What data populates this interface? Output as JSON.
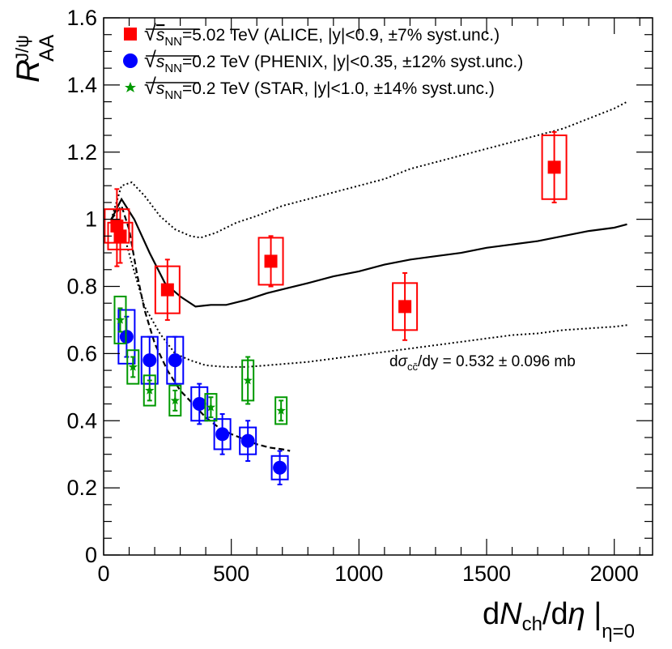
{
  "chart_data": {
    "type": "scatter",
    "title": "",
    "xlabel": "dNch/dη |η=0",
    "xlabel_parts": {
      "d1": "d",
      "N": "N",
      "ch": "ch",
      "slash": "/d",
      "eta": "η",
      "bar": " |",
      "sub": "η=0"
    },
    "ylabel": "R_AA^J/ψ",
    "ylabel_parts": {
      "R": "R",
      "AA": "AA",
      "sup": "J/ψ"
    },
    "xlim": [
      0,
      2150
    ],
    "ylim": [
      0,
      1.6
    ],
    "x_ticks": [
      0,
      500,
      1000,
      1500,
      2000
    ],
    "x_tick_labels": [
      "0",
      "500",
      "1000",
      "1500",
      "2000"
    ],
    "y_ticks": [
      0,
      0.2,
      0.4,
      0.6,
      0.8,
      1.0,
      1.2,
      1.4,
      1.6
    ],
    "y_tick_labels": [
      "0",
      "0.2",
      "0.4",
      "0.6",
      "0.8",
      "1",
      "1.2",
      "1.4",
      "1.6"
    ],
    "grid": false,
    "legend_position": "top",
    "series": [
      {
        "name": "ALICE",
        "marker": "square",
        "color": "#ff0000",
        "legend": {
          "sqrt": "√",
          "s": "s",
          "nn": "NN",
          "text": "=5.02 TeV (ALICE, |y|<0.9, ±7% syst.unc.)"
        },
        "points": [
          {
            "x": 52,
            "y": 0.98,
            "err_low": 0.12,
            "err_high": 0.11,
            "sys_low": 0.05,
            "sys_high": 0.05
          },
          {
            "x": 65,
            "y": 0.95,
            "err_low": 0.08,
            "err_high": 0.08,
            "sys_low": 0.04,
            "sys_high": 0.04
          },
          {
            "x": 250,
            "y": 0.79,
            "err_low": 0.09,
            "err_high": 0.09,
            "sys_low": 0.07,
            "sys_high": 0.07
          },
          {
            "x": 655,
            "y": 0.875,
            "err_low": 0.075,
            "err_high": 0.075,
            "sys_low": 0.07,
            "sys_high": 0.07
          },
          {
            "x": 1180,
            "y": 0.74,
            "err_low": 0.1,
            "err_high": 0.1,
            "sys_low": 0.07,
            "sys_high": 0.07
          },
          {
            "x": 1765,
            "y": 1.155,
            "err_low": 0.105,
            "err_high": 0.105,
            "sys_low": 0.095,
            "sys_high": 0.095
          }
        ]
      },
      {
        "name": "PHENIX",
        "marker": "circle",
        "color": "#0000ff",
        "legend": {
          "sqrt": "√",
          "s": "s",
          "nn": "NN",
          "text": "=0.2 TeV (PHENIX, |y|<0.35, ±12% syst.unc.)"
        },
        "points": [
          {
            "x": 90,
            "y": 0.65,
            "err_low": 0.06,
            "err_high": 0.06,
            "sys_low": 0.08,
            "sys_high": 0.08
          },
          {
            "x": 180,
            "y": 0.58,
            "err_low": 0.07,
            "err_high": 0.07,
            "sys_low": 0.07,
            "sys_high": 0.07
          },
          {
            "x": 280,
            "y": 0.58,
            "err_low": 0.07,
            "err_high": 0.07,
            "sys_low": 0.07,
            "sys_high": 0.07
          },
          {
            "x": 375,
            "y": 0.45,
            "err_low": 0.06,
            "err_high": 0.06,
            "sys_low": 0.05,
            "sys_high": 0.05
          },
          {
            "x": 465,
            "y": 0.36,
            "err_low": 0.06,
            "err_high": 0.06,
            "sys_low": 0.045,
            "sys_high": 0.045
          },
          {
            "x": 565,
            "y": 0.34,
            "err_low": 0.06,
            "err_high": 0.06,
            "sys_low": 0.04,
            "sys_high": 0.04
          },
          {
            "x": 690,
            "y": 0.26,
            "err_low": 0.05,
            "err_high": 0.05,
            "sys_low": 0.035,
            "sys_high": 0.035
          }
        ]
      },
      {
        "name": "STAR",
        "marker": "star",
        "color": "#009900",
        "legend": {
          "sqrt": "√",
          "s": "s",
          "nn": "NN",
          "text": "=0.2 TeV (STAR, |y|<1.0, ±14% syst.unc.)"
        },
        "points": [
          {
            "x": 65,
            "y": 0.7,
            "err_low": 0.035,
            "err_high": 0.035,
            "sys_low": 0.07,
            "sys_high": 0.07
          },
          {
            "x": 115,
            "y": 0.56,
            "err_low": 0.03,
            "err_high": 0.03,
            "sys_low": 0.05,
            "sys_high": 0.05
          },
          {
            "x": 180,
            "y": 0.49,
            "err_low": 0.03,
            "err_high": 0.03,
            "sys_low": 0.045,
            "sys_high": 0.045
          },
          {
            "x": 280,
            "y": 0.46,
            "err_low": 0.03,
            "err_high": 0.03,
            "sys_low": 0.045,
            "sys_high": 0.045
          },
          {
            "x": 420,
            "y": 0.44,
            "err_low": 0.03,
            "err_high": 0.03,
            "sys_low": 0.04,
            "sys_high": 0.04
          },
          {
            "x": 565,
            "y": 0.52,
            "err_low": 0.07,
            "err_high": 0.07,
            "sys_low": 0.06,
            "sys_high": 0.06
          },
          {
            "x": 695,
            "y": 0.43,
            "err_low": 0.03,
            "err_high": 0.03,
            "sys_low": 0.04,
            "sys_high": 0.04
          }
        ]
      }
    ],
    "curves": [
      {
        "name": "model-central",
        "style": "solid",
        "points": [
          [
            30,
            1.0
          ],
          [
            70,
            1.06
          ],
          [
            120,
            1.0
          ],
          [
            180,
            0.9
          ],
          [
            240,
            0.81
          ],
          [
            300,
            0.77
          ],
          [
            360,
            0.74
          ],
          [
            420,
            0.745
          ],
          [
            480,
            0.745
          ],
          [
            560,
            0.76
          ],
          [
            640,
            0.78
          ],
          [
            720,
            0.795
          ],
          [
            800,
            0.81
          ],
          [
            900,
            0.83
          ],
          [
            1000,
            0.845
          ],
          [
            1100,
            0.865
          ],
          [
            1200,
            0.88
          ],
          [
            1300,
            0.89
          ],
          [
            1400,
            0.9
          ],
          [
            1500,
            0.915
          ],
          [
            1600,
            0.925
          ],
          [
            1700,
            0.935
          ],
          [
            1800,
            0.95
          ],
          [
            1900,
            0.965
          ],
          [
            2000,
            0.975
          ],
          [
            2050,
            0.985
          ]
        ]
      },
      {
        "name": "model-upper",
        "style": "dotted",
        "points": [
          [
            30,
            1.0
          ],
          [
            70,
            1.1
          ],
          [
            110,
            1.11
          ],
          [
            160,
            1.07
          ],
          [
            220,
            1.01
          ],
          [
            280,
            0.97
          ],
          [
            340,
            0.95
          ],
          [
            380,
            0.945
          ],
          [
            440,
            0.96
          ],
          [
            520,
            0.99
          ],
          [
            600,
            1.01
          ],
          [
            700,
            1.04
          ],
          [
            800,
            1.06
          ],
          [
            900,
            1.08
          ],
          [
            1000,
            1.1
          ],
          [
            1100,
            1.12
          ],
          [
            1200,
            1.15
          ],
          [
            1300,
            1.17
          ],
          [
            1400,
            1.19
          ],
          [
            1500,
            1.21
          ],
          [
            1600,
            1.23
          ],
          [
            1700,
            1.25
          ],
          [
            1800,
            1.27
          ],
          [
            1900,
            1.3
          ],
          [
            2000,
            1.33
          ],
          [
            2050,
            1.35
          ]
        ]
      },
      {
        "name": "model-lower",
        "style": "dotted",
        "points": [
          [
            30,
            1.0
          ],
          [
            70,
            0.98
          ],
          [
            110,
            0.87
          ],
          [
            160,
            0.74
          ],
          [
            220,
            0.66
          ],
          [
            280,
            0.6
          ],
          [
            340,
            0.58
          ],
          [
            400,
            0.565
          ],
          [
            480,
            0.56
          ],
          [
            560,
            0.56
          ],
          [
            640,
            0.565
          ],
          [
            720,
            0.57
          ],
          [
            800,
            0.575
          ],
          [
            900,
            0.585
          ],
          [
            1000,
            0.595
          ],
          [
            1100,
            0.605
          ],
          [
            1200,
            0.615
          ],
          [
            1300,
            0.625
          ],
          [
            1400,
            0.635
          ],
          [
            1500,
            0.645
          ],
          [
            1600,
            0.655
          ],
          [
            1700,
            0.66
          ],
          [
            1800,
            0.67
          ],
          [
            1900,
            0.675
          ],
          [
            2000,
            0.68
          ],
          [
            2050,
            0.685
          ]
        ]
      },
      {
        "name": "model-rhic",
        "style": "dashed",
        "points": [
          [
            30,
            1.0
          ],
          [
            70,
            1.04
          ],
          [
            100,
            0.97
          ],
          [
            130,
            0.84
          ],
          [
            160,
            0.73
          ],
          [
            200,
            0.63
          ],
          [
            250,
            0.55
          ],
          [
            300,
            0.49
          ],
          [
            350,
            0.45
          ],
          [
            400,
            0.41
          ],
          [
            450,
            0.38
          ],
          [
            500,
            0.36
          ],
          [
            550,
            0.345
          ],
          [
            600,
            0.33
          ],
          [
            650,
            0.32
          ],
          [
            700,
            0.315
          ],
          [
            730,
            0.31
          ]
        ]
      }
    ],
    "annotation": {
      "d": "d",
      "sigma": "σ",
      "sub": "cc̄",
      "dy": "/dy",
      "text": " = 0.532 ± 0.096 mb",
      "x": 1150,
      "y": 0.57
    }
  }
}
